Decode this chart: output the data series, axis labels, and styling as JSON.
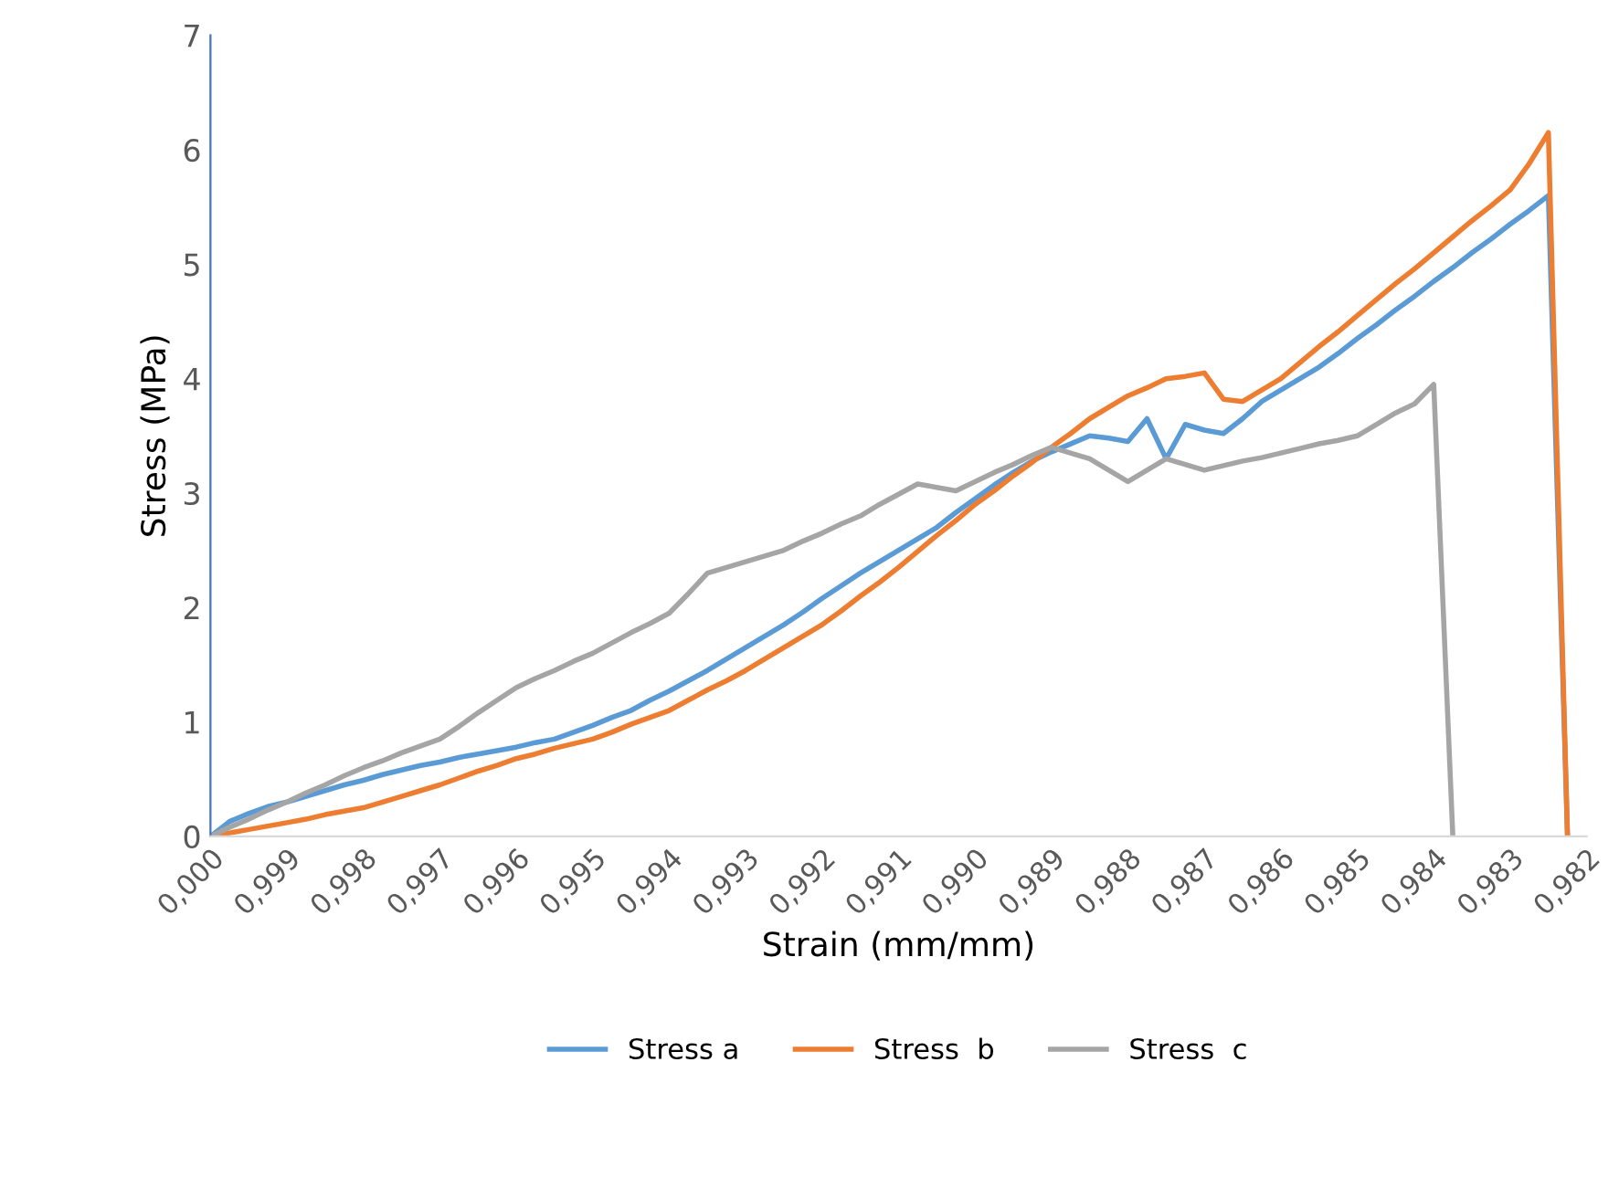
{
  "chart_data": {
    "type": "line",
    "xlabel": "Strain (mm/mm)",
    "ylabel": "Stress (MPa)",
    "categories": [
      "0,000",
      null,
      null,
      null,
      "0,999",
      null,
      null,
      null,
      "0,998",
      null,
      null,
      null,
      "0,997",
      null,
      null,
      null,
      "0,996",
      null,
      null,
      null,
      "0,995",
      null,
      null,
      null,
      "0,994",
      null,
      null,
      null,
      "0,993",
      null,
      null,
      null,
      "0,992",
      null,
      null,
      null,
      "0,991",
      null,
      null,
      null,
      "0,990",
      null,
      null,
      null,
      "0,989",
      null,
      null,
      null,
      "0,988",
      null,
      null,
      null,
      "0,987",
      null,
      null,
      null,
      "0,986",
      null,
      null,
      null,
      "0,985",
      null,
      null,
      null,
      "0,984",
      null,
      null,
      null,
      "0,983",
      null,
      null,
      null,
      "0,982"
    ],
    "ylim": [
      0,
      7
    ],
    "yticks": [
      0,
      1,
      2,
      3,
      4,
      5,
      6,
      7
    ],
    "grid": false,
    "legend": "bottom",
    "marker": "none",
    "line_style": "solid",
    "series": [
      {
        "name": "Stress a",
        "color": "#5b9bd5",
        "values": [
          0,
          0.13,
          0.2,
          0.26,
          0.3,
          0.35,
          0.4,
          0.45,
          0.49,
          0.54,
          0.58,
          0.62,
          0.65,
          0.69,
          0.72,
          0.75,
          0.78,
          0.82,
          0.85,
          0.91,
          0.97,
          1.04,
          1.1,
          1.19,
          1.27,
          1.36,
          1.45,
          1.55,
          1.65,
          1.75,
          1.85,
          1.96,
          2.08,
          2.19,
          2.3,
          2.4,
          2.5,
          2.6,
          2.7,
          2.83,
          2.95,
          3.07,
          3.18,
          3.28,
          3.36,
          3.43,
          3.5,
          3.48,
          3.45,
          3.65,
          3.3,
          3.6,
          3.55,
          3.52,
          3.65,
          3.8,
          3.9,
          4.0,
          4.1,
          4.22,
          4.35,
          4.47,
          4.6,
          4.72,
          4.85,
          4.97,
          5.1,
          5.22,
          5.35,
          5.47,
          5.6,
          0,
          null
        ]
      },
      {
        "name": "Stress  b",
        "color": "#ed7d31",
        "values": [
          0,
          0.03,
          0.06,
          0.09,
          0.12,
          0.15,
          0.19,
          0.22,
          0.25,
          0.3,
          0.35,
          0.4,
          0.45,
          0.51,
          0.57,
          0.62,
          0.68,
          0.72,
          0.77,
          0.81,
          0.85,
          0.91,
          0.98,
          1.04,
          1.1,
          1.19,
          1.28,
          1.36,
          1.45,
          1.55,
          1.65,
          1.75,
          1.85,
          1.97,
          2.1,
          2.22,
          2.35,
          2.49,
          2.63,
          2.76,
          2.9,
          3.02,
          3.15,
          3.27,
          3.4,
          3.52,
          3.65,
          3.75,
          3.85,
          3.92,
          4.0,
          4.02,
          4.05,
          3.82,
          3.8,
          3.9,
          4.0,
          4.14,
          4.28,
          4.41,
          4.55,
          4.69,
          4.83,
          4.96,
          5.1,
          5.24,
          5.38,
          5.51,
          5.65,
          5.88,
          6.15,
          0,
          null
        ]
      },
      {
        "name": "Stress  c",
        "color": "#a5a5a5",
        "values": [
          0,
          0.08,
          0.15,
          0.23,
          0.3,
          0.38,
          0.45,
          0.53,
          0.6,
          0.66,
          0.73,
          0.79,
          0.85,
          0.96,
          1.08,
          1.19,
          1.3,
          1.38,
          1.45,
          1.53,
          1.6,
          1.69,
          1.78,
          1.86,
          1.95,
          2.12,
          2.3,
          2.35,
          2.4,
          2.45,
          2.5,
          2.58,
          2.65,
          2.73,
          2.8,
          2.9,
          2.99,
          3.08,
          3.05,
          3.02,
          3.1,
          3.18,
          3.25,
          3.33,
          3.4,
          3.35,
          3.3,
          3.2,
          3.1,
          3.2,
          3.3,
          3.25,
          3.2,
          3.24,
          3.28,
          3.31,
          3.35,
          3.39,
          3.43,
          3.46,
          3.5,
          3.6,
          3.7,
          3.78,
          3.95,
          0,
          null,
          null,
          null,
          null,
          null,
          null,
          null
        ]
      }
    ]
  }
}
